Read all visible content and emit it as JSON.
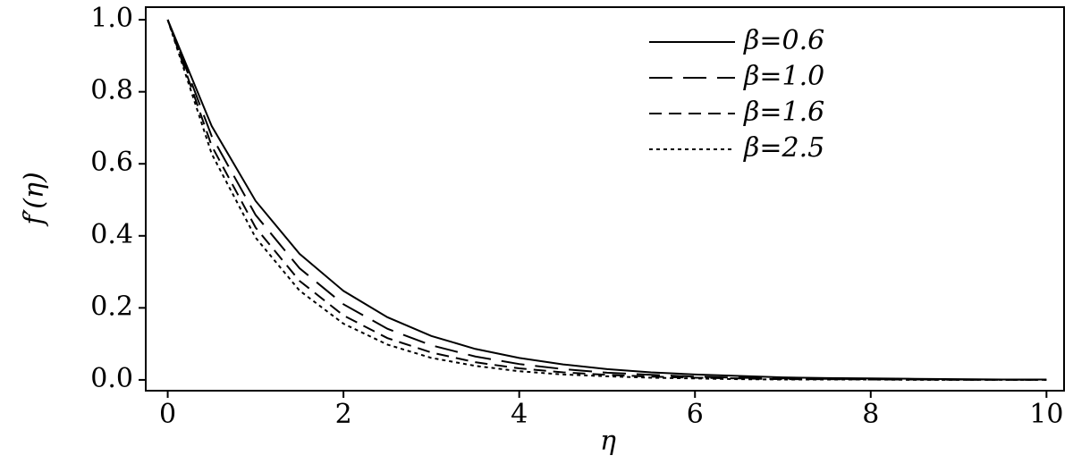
{
  "chart_data": {
    "type": "line",
    "x_label": "η",
    "y_label": "f′(η)",
    "x": [
      0,
      0.5,
      1,
      1.5,
      2,
      2.5,
      3,
      3.5,
      4,
      4.5,
      5,
      5.5,
      6,
      6.5,
      7,
      7.5,
      8,
      8.5,
      9,
      9.5,
      10
    ],
    "series": [
      {
        "name": "β=0.6",
        "color": "#000000",
        "dash": "solid",
        "values": [
          1,
          0.705,
          0.497,
          0.35,
          0.247,
          0.174,
          0.122,
          0.086,
          0.061,
          0.043,
          0.03,
          0.021,
          0.015,
          0.011,
          0.007,
          0.005,
          0.004,
          0.003,
          0.002,
          0.001,
          0.001
        ]
      },
      {
        "name": "β=1.0",
        "color": "#000000",
        "dash": "long",
        "values": [
          1,
          0.677,
          0.458,
          0.31,
          0.21,
          0.142,
          0.096,
          0.065,
          0.044,
          0.03,
          0.02,
          0.014,
          0.009,
          0.006,
          0.004,
          0.003,
          0.002,
          0.001,
          0.001,
          0.001,
          0
        ]
      },
      {
        "name": "β=1.6",
        "color": "#000000",
        "dash": "short",
        "values": [
          1,
          0.65,
          0.423,
          0.275,
          0.179,
          0.116,
          0.076,
          0.049,
          0.032,
          0.021,
          0.014,
          0.009,
          0.006,
          0.004,
          0.002,
          0.002,
          0.001,
          0.001,
          0,
          0,
          0
        ]
      },
      {
        "name": "β=2.5",
        "color": "#000000",
        "dash": "dotted",
        "values": [
          1,
          0.628,
          0.395,
          0.248,
          0.156,
          0.098,
          0.061,
          0.039,
          0.024,
          0.015,
          0.01,
          0.006,
          0.004,
          0.002,
          0.001,
          0.001,
          0.001,
          0,
          0,
          0,
          0
        ]
      }
    ],
    "xlim": [
      -0.25,
      10.2
    ],
    "ylim": [
      -0.03,
      1.035
    ],
    "xticks": [
      0,
      2,
      4,
      6,
      8,
      10
    ],
    "yticks": [
      {
        "value": 0,
        "label": "0.0"
      },
      0.2,
      0.4,
      0.6,
      0.8,
      {
        "value": 1,
        "label": "1.0"
      }
    ],
    "legend": "upper right"
  }
}
